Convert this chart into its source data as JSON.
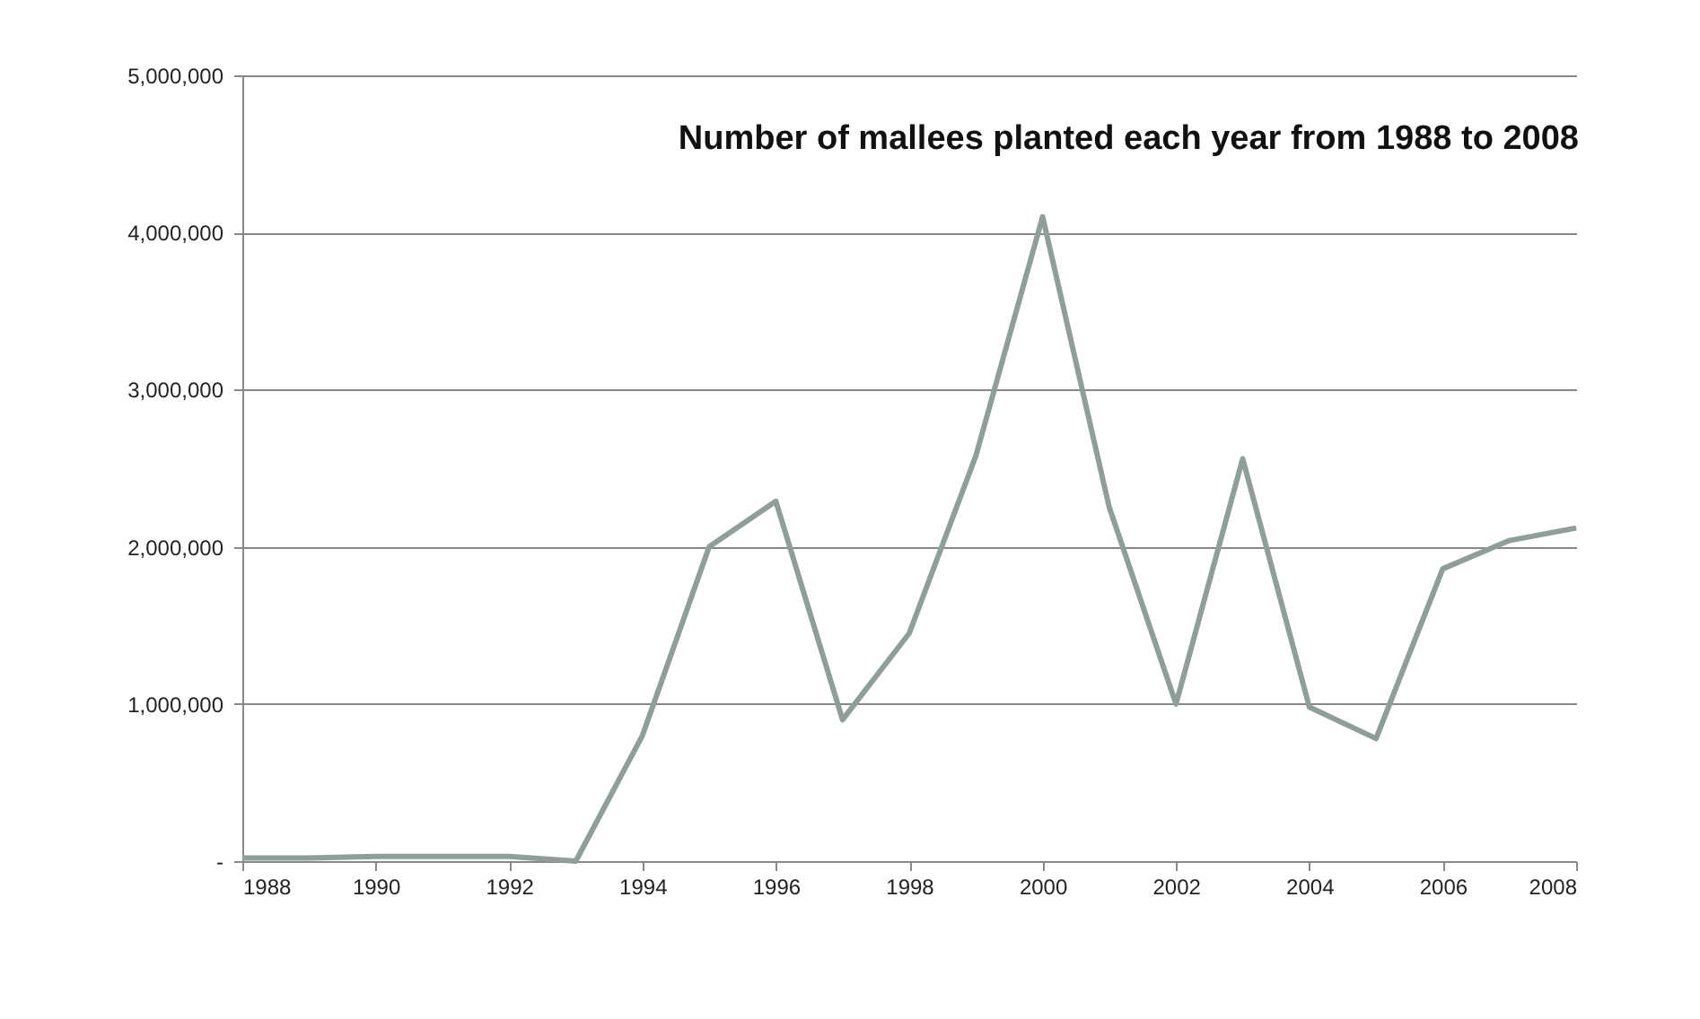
{
  "chart_data": {
    "type": "line",
    "title": "Number of mallees planted each year  from 1988 to 2008",
    "x": [
      1988,
      1989,
      1990,
      1991,
      1992,
      1993,
      1994,
      1995,
      1996,
      1997,
      1998,
      1999,
      2000,
      2001,
      2002,
      2003,
      2004,
      2005,
      2006,
      2007,
      2008
    ],
    "values": [
      20000,
      20000,
      30000,
      30000,
      30000,
      0,
      800000,
      2000000,
      2290000,
      900000,
      1450000,
      2580000,
      4100000,
      2250000,
      1000000,
      2560000,
      980000,
      780000,
      1860000,
      2040000,
      2120000
    ],
    "color": "#8f9e98",
    "xlim": [
      1988,
      2008
    ],
    "xticks": [
      1988,
      1990,
      1992,
      1994,
      1996,
      1998,
      2000,
      2002,
      2004,
      2006,
      2008
    ],
    "ylim": [
      0,
      5000000
    ],
    "yticks": [
      {
        "value": 0,
        "label": "-"
      },
      {
        "value": 1000000,
        "label": "1,000,000"
      },
      {
        "value": 2000000,
        "label": "2,000,000"
      },
      {
        "value": 3000000,
        "label": "3,000,000"
      },
      {
        "value": 4000000,
        "label": "4,000,000"
      },
      {
        "value": 5000000,
        "label": "5,000,000"
      }
    ],
    "grid": "y"
  }
}
